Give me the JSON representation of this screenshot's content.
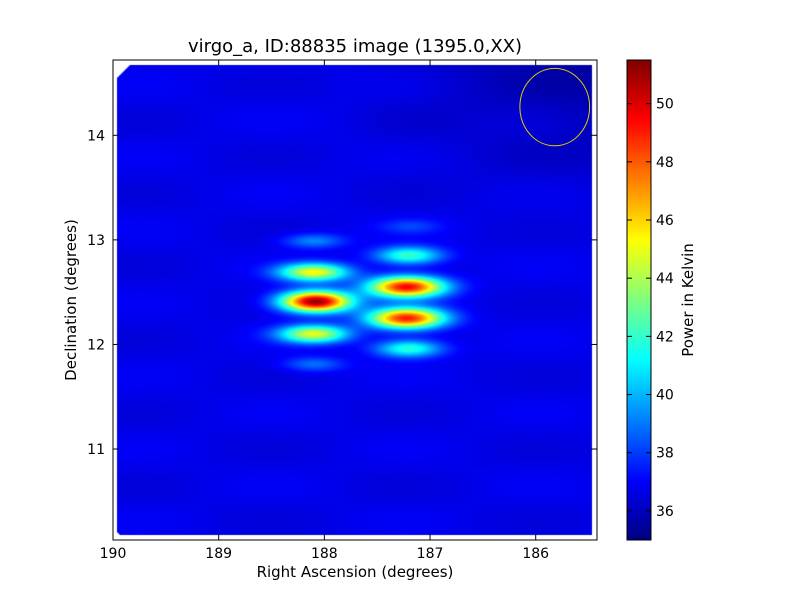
{
  "chart_data": {
    "type": "heatmap",
    "title": "virgo_a, ID:88835 image (1395.0,XX)",
    "xlabel": "Right Ascension (degrees)",
    "ylabel": "Declination (degrees)",
    "colorbar_label": "Power in Kelvin",
    "colormap": "jet",
    "xlim": [
      190.0,
      185.42
    ],
    "ylim": [
      10.13,
      14.72
    ],
    "x_ticks": [
      190,
      189,
      188,
      187,
      186
    ],
    "x_tick_labels": [
      "190",
      "189",
      "188",
      "187",
      "186"
    ],
    "y_ticks": [
      11,
      12,
      13,
      14
    ],
    "y_tick_labels": [
      "11",
      "12",
      "13",
      "14"
    ],
    "colorbar_range": [
      35.0,
      51.5
    ],
    "colorbar_ticks": [
      36,
      38,
      40,
      42,
      44,
      46,
      48,
      50
    ],
    "colorbar_tick_labels": [
      "36",
      "38",
      "40",
      "42",
      "44",
      "46",
      "48",
      "50"
    ],
    "background_level": 36.7,
    "sources": [
      {
        "ra": 188.08,
        "dec": 12.41,
        "peak": 51.3,
        "sigma_ra": 0.23,
        "sigma_dec": 0.07
      },
      {
        "ra": 188.1,
        "dec": 12.69,
        "peak": 45.2,
        "sigma_ra": 0.23,
        "sigma_dec": 0.06
      },
      {
        "ra": 188.1,
        "dec": 12.1,
        "peak": 44.8,
        "sigma_ra": 0.23,
        "sigma_dec": 0.06
      },
      {
        "ra": 188.1,
        "dec": 12.99,
        "peak": 39.3,
        "sigma_ra": 0.2,
        "sigma_dec": 0.05
      },
      {
        "ra": 188.1,
        "dec": 11.81,
        "peak": 38.9,
        "sigma_ra": 0.2,
        "sigma_dec": 0.05
      },
      {
        "ra": 187.22,
        "dec": 12.55,
        "peak": 49.5,
        "sigma_ra": 0.25,
        "sigma_dec": 0.07
      },
      {
        "ra": 187.22,
        "dec": 12.25,
        "peak": 49.0,
        "sigma_ra": 0.25,
        "sigma_dec": 0.07
      },
      {
        "ra": 187.2,
        "dec": 12.85,
        "peak": 42.3,
        "sigma_ra": 0.22,
        "sigma_dec": 0.06
      },
      {
        "ra": 187.2,
        "dec": 11.96,
        "peak": 42.0,
        "sigma_ra": 0.22,
        "sigma_dec": 0.06
      },
      {
        "ra": 187.18,
        "dec": 13.13,
        "peak": 38.0,
        "sigma_ra": 0.2,
        "sigma_dec": 0.05
      }
    ],
    "beam_circle": {
      "ra": 185.82,
      "dec": 14.27,
      "radius_ra": 0.33,
      "radius_dec": 0.37,
      "color": "#ddd000"
    },
    "legend": "none",
    "grid": false
  }
}
